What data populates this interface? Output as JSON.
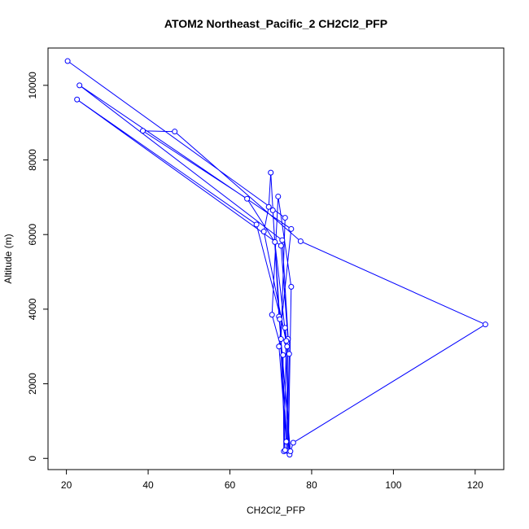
{
  "chart_data": {
    "type": "scatter",
    "title": "ATOM2 Northeast_Pacific_2 CH2Cl2_PFP",
    "xlabel": "CH2Cl2_PFP",
    "ylabel": "Altitude (m)",
    "xlim": [
      15.5,
      127
    ],
    "ylim": [
      -300,
      11000
    ],
    "xticks": [
      20,
      40,
      60,
      80,
      100,
      120
    ],
    "yticks": [
      0,
      2000,
      4000,
      6000,
      8000,
      10000
    ],
    "grid": false,
    "color": "#0000ff",
    "series": [
      {
        "points": [
          {
            "x": 20.3,
            "y": 10650
          },
          {
            "x": 73.5,
            "y": 6450
          },
          {
            "x": 72.5,
            "y": 3200
          },
          {
            "x": 74.0,
            "y": 200
          },
          {
            "x": 74.5,
            "y": 2800
          },
          {
            "x": 72.8,
            "y": 5850
          },
          {
            "x": 23.2,
            "y": 10000
          },
          {
            "x": 75.0,
            "y": 6150
          },
          {
            "x": 72.0,
            "y": 3000
          },
          {
            "x": 73.8,
            "y": 450
          },
          {
            "x": 74.2,
            "y": 3200
          },
          {
            "x": 72.5,
            "y": 5700
          },
          {
            "x": 22.6,
            "y": 9620
          },
          {
            "x": 66.5,
            "y": 6270
          },
          {
            "x": 74.0,
            "y": 3100
          },
          {
            "x": 74.3,
            "y": 200
          },
          {
            "x": 75.0,
            "y": 4600
          },
          {
            "x": 71.8,
            "y": 7020
          },
          {
            "x": 70.3,
            "y": 3850
          },
          {
            "x": 73.0,
            "y": 2770
          },
          {
            "x": 73.2,
            "y": 190
          },
          {
            "x": 73.8,
            "y": 3150
          },
          {
            "x": 71.0,
            "y": 5800
          },
          {
            "x": 64.2,
            "y": 6960
          },
          {
            "x": 38.7,
            "y": 8780
          },
          {
            "x": 46.5,
            "y": 8760
          },
          {
            "x": 77.3,
            "y": 5820
          },
          {
            "x": 122.5,
            "y": 3590
          },
          {
            "x": 75.5,
            "y": 420
          },
          {
            "x": 74.6,
            "y": 100
          },
          {
            "x": 73.5,
            "y": 3500
          },
          {
            "x": 74.0,
            "y": 3000
          },
          {
            "x": 68.3,
            "y": 6080
          },
          {
            "x": 69.5,
            "y": 6740
          },
          {
            "x": 70.0,
            "y": 7660
          },
          {
            "x": 72.0,
            "y": 3800
          },
          {
            "x": 74.8,
            "y": 190
          },
          {
            "x": 73.5,
            "y": 220
          },
          {
            "x": 72.2,
            "y": 3730
          },
          {
            "x": 70.5,
            "y": 6650
          }
        ]
      }
    ]
  }
}
